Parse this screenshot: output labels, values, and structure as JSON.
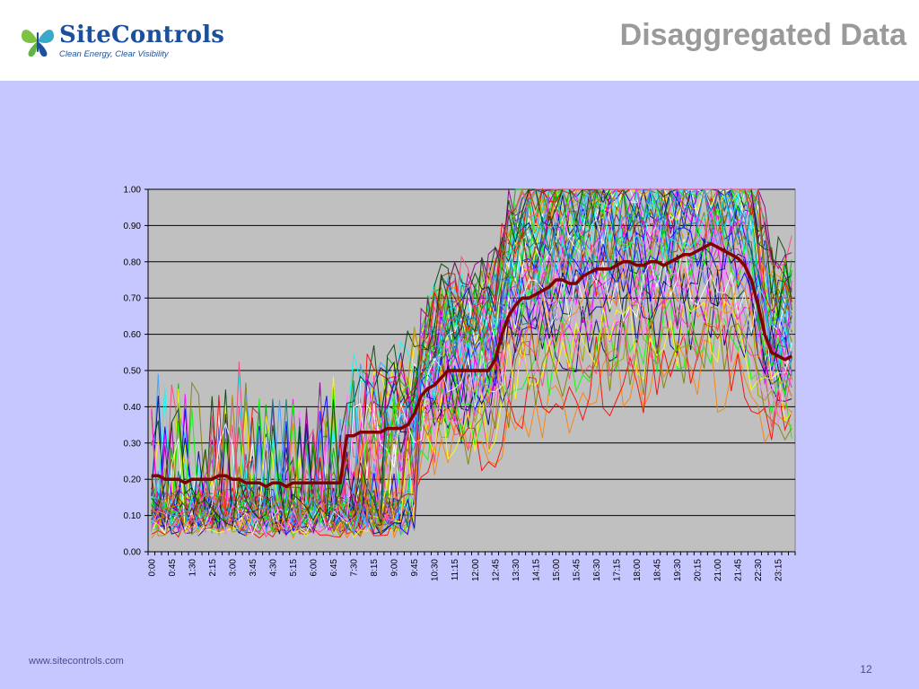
{
  "header": {
    "logo": {
      "name": "SiteControls",
      "tagline": "Clean Energy, Clear Visibility",
      "icon": "butterfly-logo-icon",
      "colors": {
        "green": "#7dc242",
        "blue": "#1c4f9c",
        "teal": "#3aa8c8"
      }
    },
    "title": "Disaggregated Data"
  },
  "footer": {
    "url": "www.sitecontrols.com",
    "page_number": "12"
  },
  "colors": {
    "slide_background": "#c7c7ff",
    "plot_background": "#c0c0c0",
    "average_line": "#800000"
  },
  "chart_data": {
    "type": "line",
    "title": "",
    "xlabel": "",
    "ylabel": "",
    "ylim": [
      0,
      1
    ],
    "grid": true,
    "legend": "none",
    "y_ticks": [
      "0.00",
      "0.10",
      "0.20",
      "0.30",
      "0.40",
      "0.50",
      "0.60",
      "0.70",
      "0.80",
      "0.90",
      "1.00"
    ],
    "x_interval_minutes": 15,
    "x_points": 96,
    "x_tick_labels": [
      "0:00",
      "0:45",
      "1:30",
      "2:15",
      "3:00",
      "3:45",
      "4:30",
      "5:15",
      "6:00",
      "6:45",
      "7:30",
      "8:15",
      "9:00",
      "9:45",
      "10:30",
      "11:15",
      "12:00",
      "12:45",
      "13:30",
      "14:15",
      "15:00",
      "15:45",
      "16:30",
      "17:15",
      "18:00",
      "18:45",
      "19:30",
      "20:15",
      "21:00",
      "21:45",
      "22:30",
      "23:15"
    ],
    "thin_series_count": 60,
    "series": [
      {
        "name": "",
        "style": "bold",
        "color": "#800000",
        "values": [
          0.21,
          0.21,
          0.2,
          0.2,
          0.2,
          0.19,
          0.2,
          0.2,
          0.2,
          0.2,
          0.21,
          0.21,
          0.2,
          0.2,
          0.19,
          0.19,
          0.19,
          0.18,
          0.19,
          0.19,
          0.18,
          0.19,
          0.19,
          0.19,
          0.19,
          0.19,
          0.19,
          0.19,
          0.19,
          0.32,
          0.32,
          0.33,
          0.33,
          0.33,
          0.33,
          0.34,
          0.34,
          0.34,
          0.35,
          0.38,
          0.43,
          0.45,
          0.46,
          0.48,
          0.5,
          0.5,
          0.5,
          0.5,
          0.5,
          0.5,
          0.5,
          0.53,
          0.6,
          0.65,
          0.68,
          0.7,
          0.7,
          0.71,
          0.72,
          0.73,
          0.75,
          0.75,
          0.74,
          0.74,
          0.76,
          0.77,
          0.78,
          0.78,
          0.78,
          0.79,
          0.8,
          0.8,
          0.79,
          0.79,
          0.8,
          0.8,
          0.79,
          0.8,
          0.81,
          0.82,
          0.82,
          0.83,
          0.84,
          0.85,
          0.84,
          0.83,
          0.82,
          0.81,
          0.79,
          0.75,
          0.68,
          0.6,
          0.55,
          0.54,
          0.53,
          0.54
        ]
      }
    ]
  }
}
